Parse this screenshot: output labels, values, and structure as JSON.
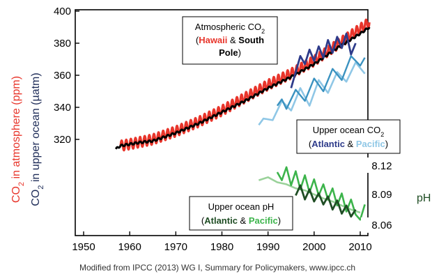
{
  "chart_data": {
    "type": "line",
    "x_ticks": [
      "1950",
      "1960",
      "1970",
      "1980",
      "1990",
      "2000",
      "2010"
    ],
    "xlim": [
      1950,
      2012
    ],
    "y_ticks": [
      "320",
      "340",
      "360",
      "380",
      "400"
    ],
    "ylim_co2": [
      300,
      400
    ],
    "ph_ticks": [
      "8.12",
      "8.09",
      "8.06"
    ],
    "ylim_ph": [
      8.05,
      8.13
    ],
    "ylabel_left_outer": {
      "main": "CO",
      "sub": "2",
      "rest": " in atmosphere (ppm)"
    },
    "ylabel_left_inner": {
      "main": "CO",
      "sub": "2",
      "rest": " in upper ocean (µatm)"
    },
    "ylabel_right": "pH",
    "colors": {
      "hawaii": "#e8352b",
      "south_pole": "#000000",
      "atlantic_co2": "#2e3b8a",
      "pacific_co2": "#8fc7e6",
      "pacific_co2_dark": "#3a92c0",
      "atlantic_ph": "#1f4d24",
      "pacific_ph": "#3cb44b",
      "pacific_ph_light": "#9ad29a",
      "ylabel_outer": "#e8352b",
      "ylabel_inner": "#1d2b57",
      "ylabel_right": "#1f4d24"
    },
    "annotations": {
      "atmos": {
        "l1": "Atmospheric CO",
        "sub": "2",
        "l2_open": "(",
        "hawaii": "Hawaii",
        "amp": " & ",
        "southpole": "South",
        "l3": "Pole",
        "l3_close": ")"
      },
      "ocean_co2": {
        "l1": "Upper ocean CO",
        "sub": "2",
        "open": "(",
        "atlantic": "Atlantic",
        "amp": " & ",
        "pacific": "Pacific",
        "close": ")"
      },
      "ocean_ph": {
        "l1": "Upper ocean pH",
        "open": "(",
        "atlantic": "Atlantic",
        "amp": " & ",
        "pacific": "Pacific",
        "close": ")"
      }
    },
    "series": [
      {
        "key": "hawaii",
        "x": [
          1958,
          1960,
          1965,
          1970,
          1975,
          1980,
          1985,
          1990,
          1995,
          2000,
          2005,
          2010,
          2012
        ],
        "values": [
          316,
          317,
          320,
          325,
          331,
          338,
          346,
          354,
          361,
          369,
          379,
          389,
          393
        ]
      },
      {
        "key": "south_pole",
        "x": [
          1957,
          1958,
          1960,
          1962,
          1965,
          1970,
          1975,
          1980,
          1985,
          1990,
          1995,
          2000,
          2005,
          2010,
          2012
        ],
        "values": [
          314,
          316,
          317,
          318,
          319,
          324,
          330,
          337,
          344,
          352,
          359,
          367,
          377,
          386,
          390
        ]
      },
      {
        "key": "atlantic_co2",
        "x": [
          1995,
          1996,
          1997,
          1998,
          1999,
          2000,
          2001,
          2002,
          2003,
          2004,
          2005,
          2006,
          2007,
          2008,
          2009
        ],
        "values": [
          352,
          362,
          372,
          367,
          376,
          369,
          378,
          371,
          382,
          374,
          384,
          377,
          386,
          373,
          380
        ]
      },
      {
        "key": "pacific_co2",
        "x": [
          1988,
          1989,
          1991,
          1993,
          1995,
          1997,
          1999,
          2001,
          2003,
          2005,
          2007,
          2009,
          2011
        ],
        "values": [
          329,
          333,
          332,
          344,
          338,
          352,
          341,
          357,
          349,
          362,
          356,
          368,
          361
        ]
      },
      {
        "key": "pacific_co2_b",
        "x": [
          1992,
          1993,
          1994,
          1996,
          1998,
          2000,
          2002,
          2004,
          2006,
          2008,
          2010,
          2011
        ],
        "values": [
          341,
          345,
          339,
          351,
          344,
          358,
          350,
          364,
          357,
          372,
          366,
          371
        ]
      },
      {
        "key": "atlantic_ph",
        "x": [
          1996,
          1997,
          1998,
          1999,
          2000,
          2001,
          2002,
          2003,
          2004,
          2005,
          2006,
          2007,
          2008,
          2009
        ],
        "values": [
          8.088,
          8.098,
          8.084,
          8.094,
          8.082,
          8.09,
          8.079,
          8.087,
          8.074,
          8.083,
          8.07,
          8.078,
          8.067,
          8.074
        ]
      },
      {
        "key": "pacific_ph",
        "x": [
          1992,
          1993,
          1994,
          1995,
          1996,
          1997,
          1998,
          1999,
          2000,
          2001,
          2002,
          2003,
          2004,
          2005,
          2006,
          2007,
          2008,
          2009,
          2010,
          2011
        ],
        "values": [
          8.111,
          8.103,
          8.116,
          8.098,
          8.112,
          8.094,
          8.108,
          8.091,
          8.104,
          8.088,
          8.099,
          8.084,
          8.095,
          8.078,
          8.09,
          8.072,
          8.084,
          8.069,
          8.064,
          8.079
        ]
      },
      {
        "key": "pacific_ph_light",
        "x": [
          1988,
          1990,
          1992,
          1994,
          1996,
          1998,
          2000,
          2002,
          2004,
          2006,
          2008,
          2010
        ],
        "values": [
          8.103,
          8.106,
          8.101,
          8.099,
          8.095,
          8.093,
          8.089,
          8.085,
          8.082,
          8.078,
          8.074,
          8.071
        ]
      }
    ]
  },
  "credit": "Modified from IPCC (2013) WG I, Summary for Policymakers, www.ipcc.ch"
}
